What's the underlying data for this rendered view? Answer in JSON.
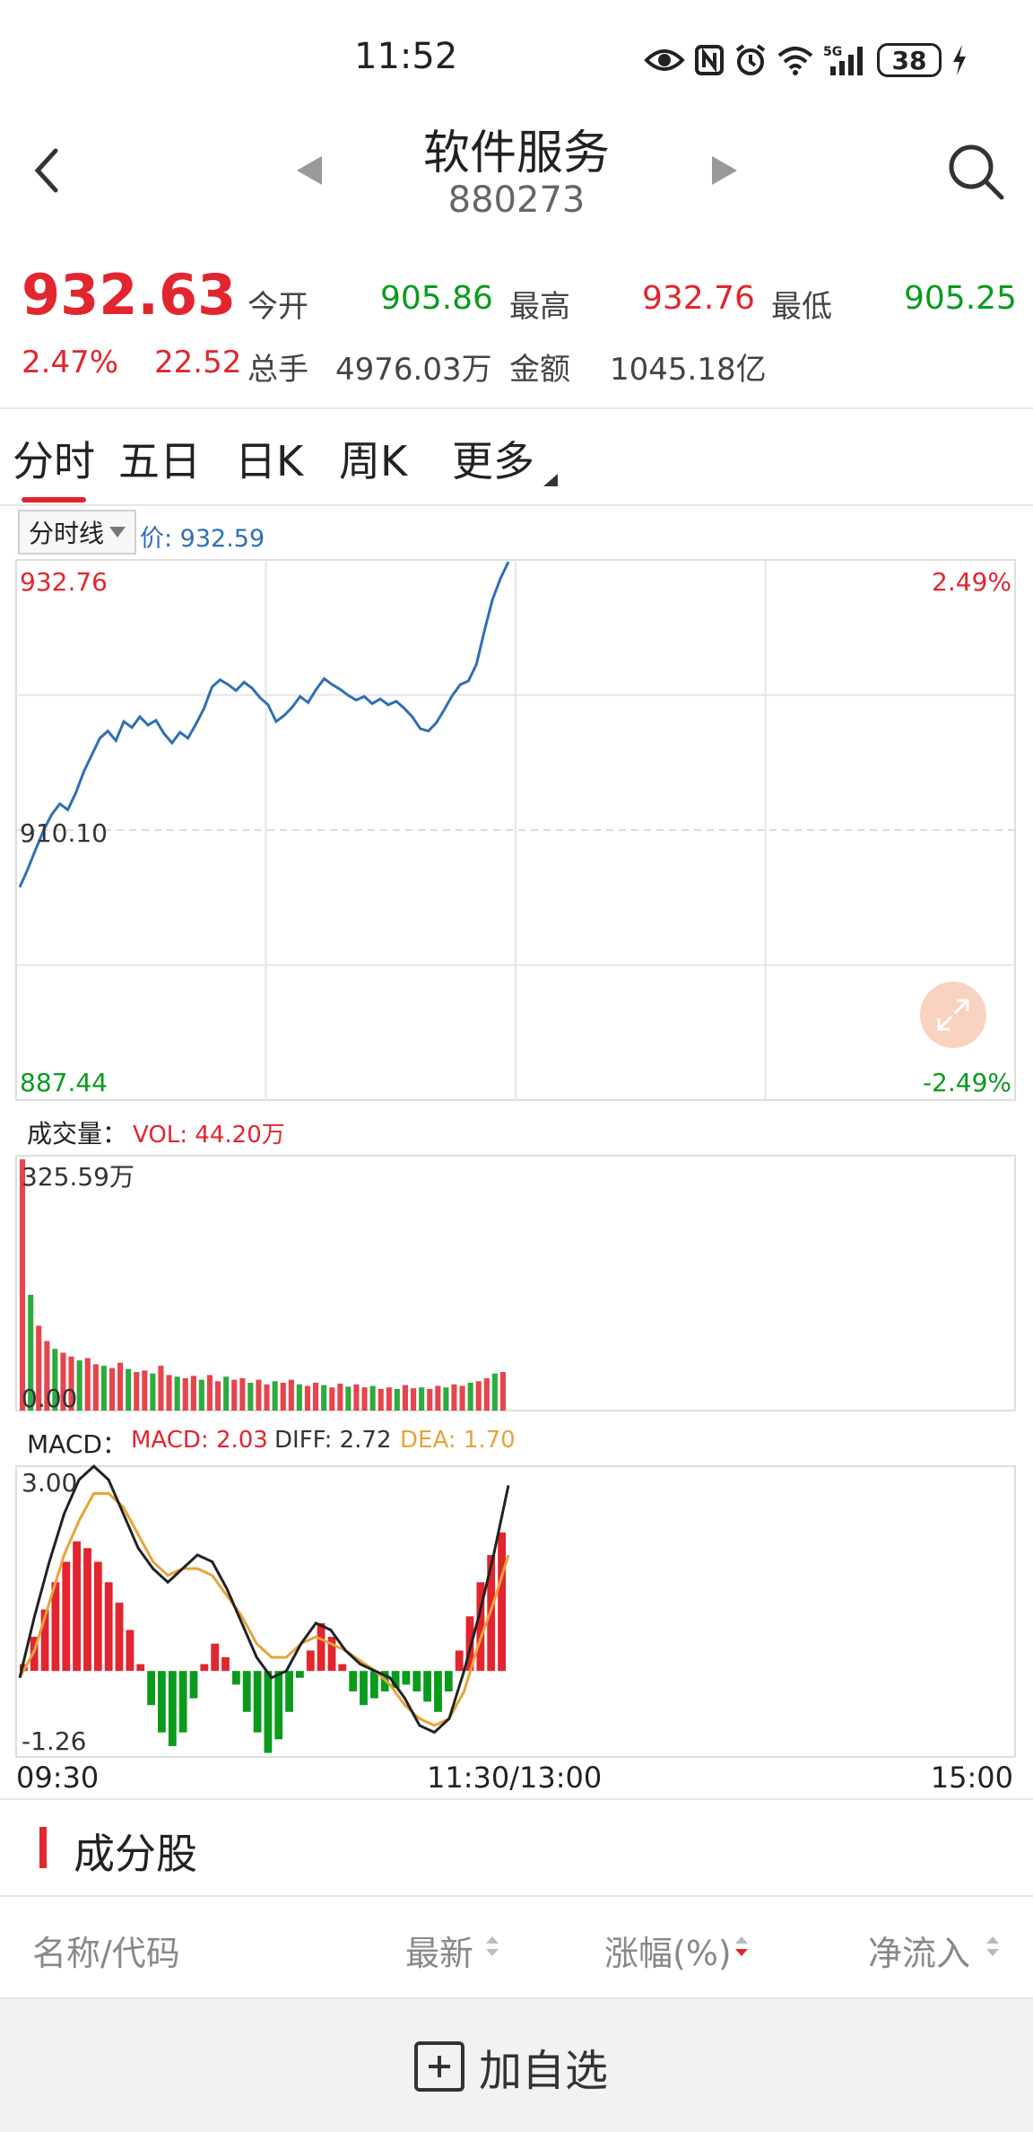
{
  "status_bar": {
    "time": "11:52",
    "battery": "38"
  },
  "header": {
    "title": "软件服务",
    "code": "880273"
  },
  "quote": {
    "price": "932.63",
    "change_pct": "2.47%",
    "change": "22.52",
    "open_label": "今开",
    "open": "905.86",
    "high_label": "最高",
    "high": "932.76",
    "low_label": "最低",
    "low": "905.25",
    "volume_label": "总手",
    "volume": "4976.03万",
    "amount_label": "金额",
    "amount": "1045.18亿"
  },
  "tabs": [
    "分时",
    "五日",
    "日K",
    "周K",
    "更多"
  ],
  "chart": {
    "mode_select": "分时线",
    "price_readout": "价: 932.59",
    "ymax": "932.76",
    "ymid": "910.10",
    "ymin": "887.44",
    "pct_max": "2.49%",
    "pct_min": "-2.49%",
    "vol_title": "成交量：",
    "vol_value": "VOL: 44.20万",
    "vol_max": "325.59万",
    "vol_min": "0.00",
    "macd_title": "MACD：",
    "macd_value": "MACD: 2.03",
    "diff_value": "DIFF: 2.72",
    "dea_value": "DEA: 1.70",
    "macd_max": "3.00",
    "macd_min": "-1.26",
    "time_start": "09:30",
    "time_mid": "11:30/13:00",
    "time_end": "15:00"
  },
  "chart_data": {
    "type": "line",
    "y_range": [
      887.44,
      932.76
    ],
    "prev_close": 910.1,
    "price_series": [
      905.3,
      906.8,
      908.5,
      910.1,
      911.4,
      912.3,
      911.8,
      913.2,
      915.0,
      916.4,
      917.8,
      918.4,
      917.6,
      919.2,
      918.7,
      919.6,
      918.9,
      919.3,
      918.2,
      917.4,
      918.3,
      917.8,
      919.0,
      920.3,
      922.1,
      922.7,
      922.3,
      921.8,
      922.5,
      922.0,
      921.2,
      920.6,
      919.2,
      919.7,
      920.4,
      921.3,
      920.8,
      921.9,
      922.8,
      922.3,
      921.9,
      921.4,
      921.0,
      921.3,
      920.7,
      921.1,
      920.6,
      920.9,
      920.3,
      919.6,
      918.6,
      918.4,
      919.1,
      920.2,
      921.4,
      922.3,
      922.6,
      924.0,
      926.8,
      929.4,
      931.2,
      932.6
    ],
    "volume_series": [
      325.59,
      150,
      110,
      90,
      80,
      75,
      70,
      65,
      68,
      60,
      58,
      55,
      62,
      54,
      50,
      52,
      48,
      58,
      46,
      44,
      42,
      45,
      40,
      46,
      38,
      44,
      40,
      42,
      36,
      40,
      34,
      38,
      36,
      40,
      34,
      32,
      36,
      33,
      30,
      35,
      31,
      34,
      30,
      32,
      28,
      30,
      28,
      33,
      29,
      30,
      28,
      32,
      30,
      34,
      32,
      36,
      38,
      42,
      48,
      50
    ],
    "macd_series": [
      0.1,
      0.5,
      0.9,
      1.3,
      1.6,
      1.9,
      1.8,
      1.6,
      1.3,
      1.0,
      0.6,
      0.1,
      -0.5,
      -0.9,
      -1.1,
      -0.9,
      -0.4,
      0.1,
      0.4,
      0.2,
      -0.2,
      -0.6,
      -0.9,
      -1.2,
      -1.0,
      -0.6,
      -0.1,
      0.3,
      0.7,
      0.5,
      0.1,
      -0.3,
      -0.5,
      -0.4,
      -0.3,
      -0.25,
      -0.2,
      -0.3,
      -0.45,
      -0.6,
      -0.3,
      0.3,
      0.8,
      1.3,
      1.7,
      2.03
    ],
    "diff_series": [
      -0.1,
      0.8,
      1.6,
      2.3,
      2.8,
      3.0,
      2.8,
      2.3,
      1.8,
      1.5,
      1.3,
      1.5,
      1.7,
      1.6,
      1.2,
      0.7,
      0.2,
      -0.1,
      0.0,
      0.4,
      0.7,
      0.6,
      0.3,
      0.1,
      0.0,
      -0.1,
      -0.4,
      -0.8,
      -0.9,
      -0.7,
      0.0,
      0.8,
      1.7,
      2.72
    ],
    "dea_series": [
      -0.1,
      0.3,
      1.0,
      1.7,
      2.2,
      2.6,
      2.6,
      2.4,
      2.0,
      1.6,
      1.4,
      1.5,
      1.5,
      1.4,
      1.1,
      0.8,
      0.4,
      0.2,
      0.2,
      0.4,
      0.5,
      0.4,
      0.3,
      0.15,
      0.0,
      -0.2,
      -0.5,
      -0.7,
      -0.8,
      -0.7,
      -0.3,
      0.4,
      1.0,
      1.7
    ]
  },
  "section": {
    "title": "成分股"
  },
  "columns": [
    "名称/代码",
    "最新",
    "涨幅(%)",
    "净流入"
  ],
  "footer": {
    "add_label": "加自选"
  },
  "colors": {
    "up": "#e2252e",
    "down": "#0a9b1d",
    "line": "#2f6fb5",
    "dea": "#e8a33a"
  }
}
